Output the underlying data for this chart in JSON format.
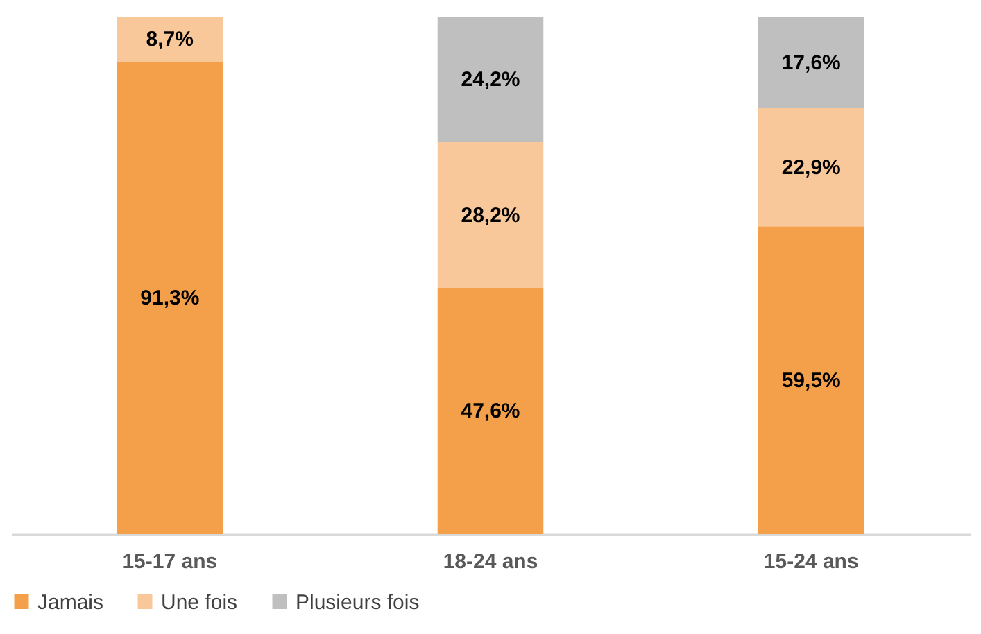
{
  "chart_data": {
    "type": "bar",
    "stacked": true,
    "categories": [
      "15-17 ans",
      "18-24 ans",
      "15-24 ans"
    ],
    "series": [
      {
        "name": "Jamais",
        "color": "#f4a04b",
        "values": [
          91.3,
          47.6,
          59.5
        ],
        "value_labels": [
          "91,3%",
          "47,6%",
          "59,5%"
        ]
      },
      {
        "name": "Une fois",
        "color": "#f9c89a",
        "values": [
          8.7,
          28.2,
          22.9
        ],
        "value_labels": [
          "8,7%",
          "28,2%",
          "22,9%"
        ]
      },
      {
        "name": "Plusieurs fois",
        "color": "#bfbfbf",
        "values": [
          null,
          24.2,
          17.6
        ],
        "value_labels": [
          null,
          "24,2%",
          "17,6%"
        ]
      }
    ],
    "legend": "bottom"
  }
}
